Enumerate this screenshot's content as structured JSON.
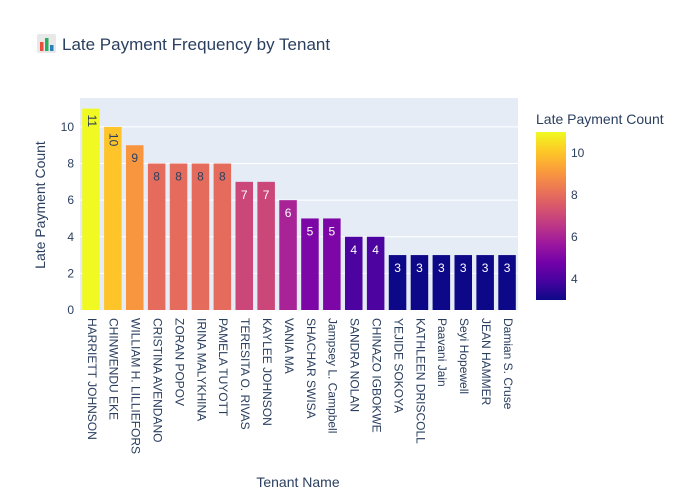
{
  "chart_data": {
    "type": "bar",
    "title": "Late Payment Frequency by Tenant",
    "title_icon": "bar-chart-emoji",
    "xlabel": "Tenant Name",
    "ylabel": "Late Payment Count",
    "categories": [
      "HARRIETT JOHNSON",
      "CHINWENDU EKE",
      "WILLIAM H. LILLIEFORS",
      "CRISTINA AVENDANO",
      "ZORAN POPOV",
      "IRINA MALYKHINA",
      "PAMELA TUYOTT",
      "TERESITA O. RIVAS",
      "KAYLEE JOHNSON",
      "VANIA MA",
      "SHACHAR SWISA",
      "Jampsey  L. Campbell",
      "SANDRA NOLAN",
      "CHINAZO IGBOKWE",
      "YEJIDE SOKOYA",
      "KATHLEEN DRISCOLL",
      "Paavani Jain",
      "Seyi Hopewell",
      "JEAN HAMMER",
      "Damian S. Cruse"
    ],
    "values": [
      11,
      10,
      9,
      8,
      8,
      8,
      8,
      7,
      7,
      6,
      5,
      5,
      4,
      4,
      3,
      3,
      3,
      3,
      3,
      3
    ],
    "ylim": [
      0,
      11.58
    ],
    "yticks": [
      0,
      2,
      4,
      6,
      8,
      10
    ],
    "grid": true,
    "colorbar": {
      "title": "Late Payment Count",
      "range": [
        3,
        11
      ],
      "ticks": [
        4,
        6,
        8,
        10
      ],
      "colorscale": "plasma"
    },
    "colors": {
      "plot_bg": "#e5ecf6",
      "grid": "#ffffff",
      "text": "#2a3f5f"
    }
  }
}
